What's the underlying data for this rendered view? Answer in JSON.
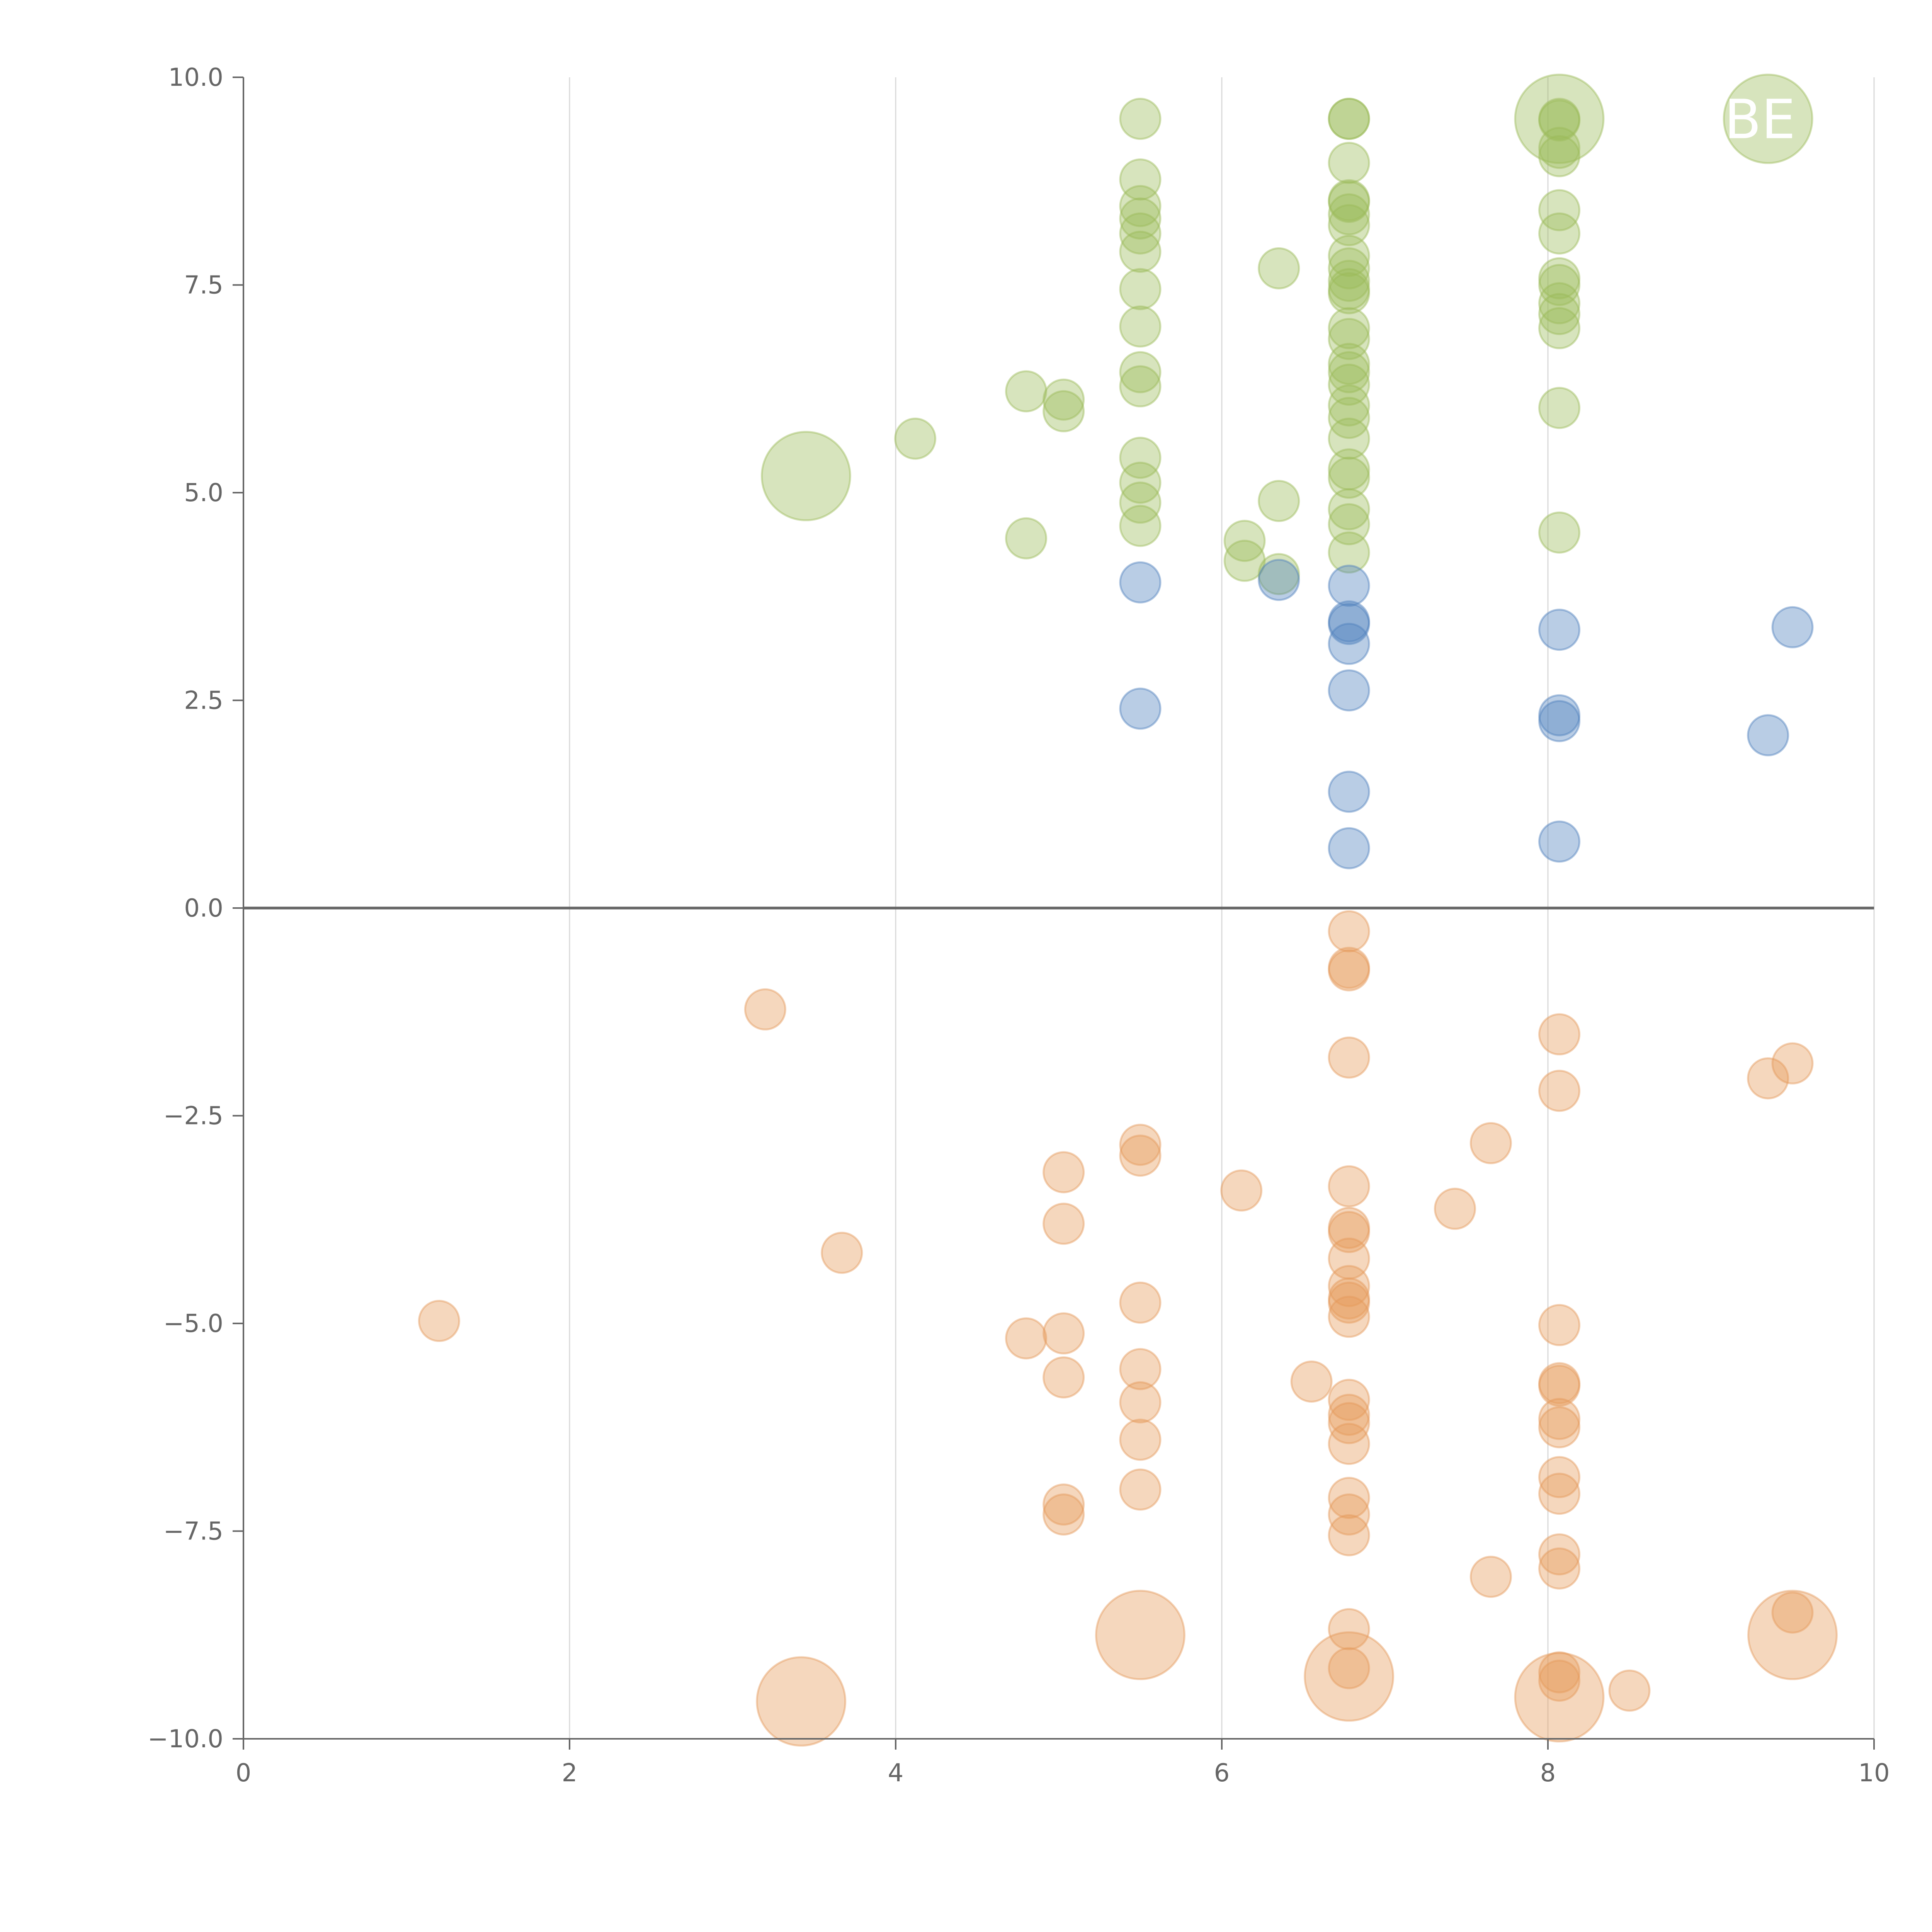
{
  "chart_data": {
    "type": "scatter",
    "title": "",
    "xlabel": "",
    "ylabel": "",
    "xlim": [
      0,
      10
    ],
    "ylim": [
      -10,
      10
    ],
    "x_ticks": [
      0,
      2,
      4,
      6,
      8,
      10
    ],
    "y_ticks": [
      10,
      7.5,
      5,
      2.5,
      0,
      -2.5,
      -5,
      -7.5,
      -10
    ],
    "x_tick_labels": [
      "0",
      "2",
      "4",
      "6",
      "8",
      "10"
    ],
    "y_tick_labels": [
      "10.0",
      "7.5",
      "5.0",
      "2.5",
      "0.0",
      "−2.5",
      "−5.0",
      "−7.5",
      "−10.0"
    ],
    "grid": {
      "vertical": true,
      "horizontal": false
    },
    "reference_line": {
      "y": 0
    },
    "legend": "none",
    "annotations": [
      {
        "text": "BE",
        "x": 9.3,
        "y": 9.5
      }
    ],
    "series": [
      {
        "color": "#9bbb59",
        "points": [
          [
            3.45,
            5.2,
            2.2
          ],
          [
            4.12,
            5.65,
            1
          ],
          [
            4.8,
            6.22,
            1
          ],
          [
            4.8,
            4.45,
            1
          ],
          [
            5.03,
            6.12,
            1
          ],
          [
            5.03,
            5.98,
            1
          ],
          [
            5.5,
            9.5,
            1
          ],
          [
            5.5,
            8.77,
            1
          ],
          [
            5.5,
            8.45,
            1
          ],
          [
            5.5,
            8.3,
            1
          ],
          [
            5.5,
            8.12,
            1
          ],
          [
            5.5,
            7.9,
            1
          ],
          [
            5.5,
            7.45,
            1
          ],
          [
            5.5,
            7.0,
            1
          ],
          [
            5.5,
            6.45,
            1
          ],
          [
            5.5,
            6.28,
            1
          ],
          [
            5.5,
            5.42,
            1
          ],
          [
            5.5,
            5.12,
            1
          ],
          [
            5.5,
            4.88,
            1
          ],
          [
            5.5,
            4.6,
            1
          ],
          [
            6.14,
            4.42,
            1
          ],
          [
            6.14,
            4.18,
            1
          ],
          [
            6.35,
            7.7,
            1
          ],
          [
            6.35,
            4.9,
            1
          ],
          [
            6.35,
            4.02,
            1
          ],
          [
            6.78,
            9.5,
            1
          ],
          [
            6.78,
            9.5,
            1
          ],
          [
            6.78,
            8.97,
            1
          ],
          [
            6.78,
            8.52,
            1
          ],
          [
            6.78,
            8.5,
            1
          ],
          [
            6.78,
            8.35,
            1
          ],
          [
            6.78,
            8.22,
            1
          ],
          [
            6.78,
            7.85,
            1
          ],
          [
            6.78,
            7.7,
            1
          ],
          [
            6.78,
            7.55,
            1
          ],
          [
            6.78,
            7.45,
            1
          ],
          [
            6.78,
            7.4,
            1
          ],
          [
            6.78,
            6.98,
            1
          ],
          [
            6.78,
            6.85,
            1
          ],
          [
            6.78,
            6.55,
            1
          ],
          [
            6.78,
            6.45,
            1
          ],
          [
            6.78,
            6.3,
            1
          ],
          [
            6.78,
            6.05,
            1
          ],
          [
            6.78,
            5.9,
            1
          ],
          [
            6.78,
            5.65,
            1
          ],
          [
            6.78,
            5.28,
            1
          ],
          [
            6.78,
            5.18,
            1
          ],
          [
            6.78,
            4.8,
            1
          ],
          [
            6.78,
            4.62,
            1
          ],
          [
            6.78,
            4.28,
            1
          ],
          [
            8.07,
            9.5,
            2.2
          ],
          [
            8.07,
            9.5,
            1
          ],
          [
            8.07,
            9.48,
            1
          ],
          [
            8.07,
            9.15,
            1
          ],
          [
            8.07,
            9.05,
            1
          ],
          [
            8.07,
            8.4,
            1
          ],
          [
            8.07,
            8.12,
            1
          ],
          [
            8.07,
            7.58,
            1
          ],
          [
            8.07,
            7.5,
            1
          ],
          [
            8.07,
            7.28,
            1
          ],
          [
            8.07,
            7.15,
            1
          ],
          [
            8.07,
            6.98,
            1
          ],
          [
            8.07,
            6.02,
            1
          ],
          [
            8.07,
            4.52,
            1
          ],
          [
            9.35,
            9.5,
            2.2
          ]
        ]
      },
      {
        "color": "#4f81bd",
        "points": [
          [
            5.5,
            3.92,
            1
          ],
          [
            5.5,
            2.4,
            1
          ],
          [
            6.35,
            3.95,
            1
          ],
          [
            6.78,
            3.88,
            1
          ],
          [
            6.78,
            3.45,
            1
          ],
          [
            6.78,
            3.42,
            1
          ],
          [
            6.78,
            3.18,
            1
          ],
          [
            6.78,
            2.62,
            1
          ],
          [
            6.78,
            1.4,
            1
          ],
          [
            6.78,
            0.72,
            1
          ],
          [
            8.07,
            3.35,
            1
          ],
          [
            8.07,
            2.32,
            1
          ],
          [
            8.07,
            2.25,
            1
          ],
          [
            8.07,
            0.8,
            1
          ],
          [
            9.35,
            2.08,
            1
          ],
          [
            9.5,
            3.38,
            1
          ]
        ]
      },
      {
        "color": "#e59a5a",
        "points": [
          [
            1.2,
            -4.97,
            1
          ],
          [
            3.2,
            -1.22,
            1
          ],
          [
            3.42,
            -9.55,
            2.2
          ],
          [
            3.67,
            -4.15,
            1
          ],
          [
            4.8,
            -5.18,
            1
          ],
          [
            5.03,
            -3.18,
            1
          ],
          [
            5.03,
            -3.8,
            1
          ],
          [
            5.03,
            -5.12,
            1
          ],
          [
            5.03,
            -5.65,
            1
          ],
          [
            5.03,
            -7.18,
            1
          ],
          [
            5.03,
            -7.3,
            1
          ],
          [
            5.5,
            -2.85,
            1
          ],
          [
            5.5,
            -2.98,
            1
          ],
          [
            5.5,
            -4.75,
            1
          ],
          [
            5.5,
            -5.55,
            1
          ],
          [
            5.5,
            -5.95,
            1
          ],
          [
            5.5,
            -6.4,
            1
          ],
          [
            5.5,
            -7.0,
            1
          ],
          [
            5.5,
            -8.75,
            2.2
          ],
          [
            6.12,
            -3.4,
            1
          ],
          [
            6.55,
            -5.7,
            1
          ],
          [
            6.78,
            -0.28,
            1
          ],
          [
            6.78,
            -0.72,
            1
          ],
          [
            6.78,
            -0.75,
            1
          ],
          [
            6.78,
            -1.8,
            1
          ],
          [
            6.78,
            -3.35,
            1
          ],
          [
            6.78,
            -3.85,
            1
          ],
          [
            6.78,
            -3.9,
            1
          ],
          [
            6.78,
            -4.22,
            1
          ],
          [
            6.78,
            -4.55,
            1
          ],
          [
            6.78,
            -4.7,
            1
          ],
          [
            6.78,
            -4.75,
            1
          ],
          [
            6.78,
            -4.92,
            1
          ],
          [
            6.78,
            -5.92,
            1
          ],
          [
            6.78,
            -6.1,
            1
          ],
          [
            6.78,
            -6.2,
            1
          ],
          [
            6.78,
            -6.45,
            1
          ],
          [
            6.78,
            -7.1,
            1
          ],
          [
            6.78,
            -7.3,
            1
          ],
          [
            6.78,
            -7.55,
            1
          ],
          [
            6.78,
            -8.68,
            1
          ],
          [
            6.78,
            -9.15,
            1
          ],
          [
            6.78,
            -9.25,
            2.2
          ],
          [
            7.43,
            -3.62,
            1
          ],
          [
            7.65,
            -2.83,
            1
          ],
          [
            7.65,
            -8.05,
            1
          ],
          [
            8.07,
            -1.52,
            1
          ],
          [
            8.07,
            -2.2,
            1
          ],
          [
            8.07,
            -5.02,
            1
          ],
          [
            8.07,
            -5.72,
            1
          ],
          [
            8.07,
            -5.75,
            1
          ],
          [
            8.07,
            -6.15,
            1
          ],
          [
            8.07,
            -6.25,
            1
          ],
          [
            8.07,
            -6.85,
            1
          ],
          [
            8.07,
            -7.05,
            1
          ],
          [
            8.07,
            -7.78,
            1
          ],
          [
            8.07,
            -7.95,
            1
          ],
          [
            8.07,
            -9.2,
            1
          ],
          [
            8.07,
            -9.3,
            1
          ],
          [
            8.07,
            -9.5,
            2.2
          ],
          [
            8.5,
            -9.42,
            1
          ],
          [
            9.35,
            -2.05,
            1
          ],
          [
            9.5,
            -1.87,
            1
          ],
          [
            9.5,
            -8.48,
            1
          ],
          [
            9.5,
            -8.75,
            2.2
          ]
        ]
      }
    ]
  }
}
